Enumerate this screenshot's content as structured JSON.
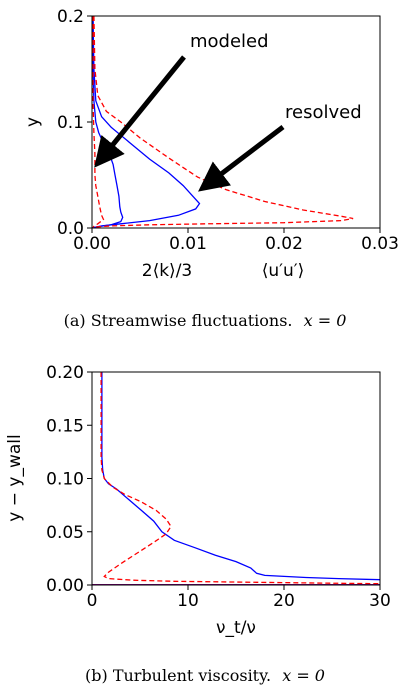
{
  "chart_data": [
    {
      "type": "line",
      "panel_caption": "(a) Streamwise fluctuations.",
      "caption_math": "x = 0",
      "xlabel_left": "2⟨k⟩/3",
      "xlabel_right": "⟨u′u′⟩",
      "ylabel": "y",
      "xlim": [
        0,
        0.03
      ],
      "ylim": [
        0,
        0.2
      ],
      "xticks": [
        "0.00",
        "0.01",
        "0.02",
        "0.03"
      ],
      "yticks": [
        "0.0",
        "0.1",
        "0.2"
      ],
      "grid": false,
      "annotations": [
        {
          "text": "modeled",
          "points_to": [
            0.0003,
            0.05
          ]
        },
        {
          "text": "resolved",
          "points_to": [
            0.0105,
            0.033
          ]
        }
      ],
      "series": [
        {
          "style": "solid",
          "color": "#0000ff",
          "points": [
            [
              0.0001,
              0.2
            ],
            [
              0.0001,
              0.15
            ],
            [
              0.0002,
              0.12
            ],
            [
              0.0004,
              0.1
            ],
            [
              0.0007,
              0.09
            ],
            [
              0.0012,
              0.08
            ],
            [
              0.0018,
              0.07
            ],
            [
              0.0022,
              0.06
            ],
            [
              0.0024,
              0.05
            ],
            [
              0.0026,
              0.04
            ],
            [
              0.0028,
              0.03
            ],
            [
              0.0029,
              0.02
            ],
            [
              0.003,
              0.015
            ],
            [
              0.0032,
              0.01
            ],
            [
              0.003,
              0.006
            ],
            [
              0.002,
              0.003
            ],
            [
              0.0005,
              0.001
            ],
            [
              0.0,
              0.0
            ]
          ]
        },
        {
          "style": "solid",
          "color": "#0000ff",
          "points": [
            [
              0.0001,
              0.2
            ],
            [
              0.0002,
              0.15
            ],
            [
              0.0004,
              0.12
            ],
            [
              0.001,
              0.105
            ],
            [
              0.002,
              0.095
            ],
            [
              0.004,
              0.08
            ],
            [
              0.006,
              0.065
            ],
            [
              0.008,
              0.052
            ],
            [
              0.0095,
              0.04
            ],
            [
              0.0105,
              0.03
            ],
            [
              0.0112,
              0.023
            ],
            [
              0.0108,
              0.018
            ],
            [
              0.009,
              0.012
            ],
            [
              0.006,
              0.007
            ],
            [
              0.003,
              0.004
            ],
            [
              0.001,
              0.002
            ],
            [
              0.0,
              0.0
            ]
          ]
        },
        {
          "style": "dashed",
          "color": "#ff0000",
          "points": [
            [
              0.0002,
              0.2
            ],
            [
              0.0003,
              0.15
            ],
            [
              0.0006,
              0.125
            ],
            [
              0.0015,
              0.11
            ],
            [
              0.003,
              0.1
            ],
            [
              0.005,
              0.085
            ],
            [
              0.008,
              0.066
            ],
            [
              0.011,
              0.048
            ],
            [
              0.014,
              0.036
            ],
            [
              0.018,
              0.025
            ],
            [
              0.022,
              0.017
            ],
            [
              0.026,
              0.011
            ],
            [
              0.0272,
              0.009
            ],
            [
              0.026,
              0.007
            ],
            [
              0.02,
              0.005
            ],
            [
              0.012,
              0.004
            ],
            [
              0.006,
              0.003
            ],
            [
              0.002,
              0.002
            ],
            [
              0.0005,
              0.001
            ],
            [
              0.0,
              0.0
            ]
          ]
        },
        {
          "style": "dashed",
          "color": "#ff0000",
          "points": [
            [
              0.0001,
              0.2
            ],
            [
              0.0001,
              0.15
            ],
            [
              0.0001,
              0.12
            ],
            [
              0.0002,
              0.09
            ],
            [
              0.0003,
              0.07
            ],
            [
              0.0003,
              0.05
            ],
            [
              0.0004,
              0.04
            ],
            [
              0.0006,
              0.03
            ],
            [
              0.0008,
              0.02
            ],
            [
              0.001,
              0.012
            ],
            [
              0.0012,
              0.008
            ],
            [
              0.0006,
              0.004
            ],
            [
              0.0001,
              0.001
            ]
          ]
        }
      ]
    },
    {
      "type": "line",
      "panel_caption": "(b) Turbulent viscosity.",
      "caption_math": "x = 0",
      "xlabel": "ν_t/ν",
      "ylabel": "y − y_wall",
      "xlim": [
        0,
        35
      ],
      "ylim": [
        0,
        0.2
      ],
      "xticks": [
        "0",
        "10",
        "20",
        "30"
      ],
      "yticks": [
        "0.00",
        "0.05",
        "0.10",
        "0.15",
        "0.20"
      ],
      "grid": false,
      "series": [
        {
          "style": "solid",
          "color": "#0000ff",
          "points": [
            [
              1.2,
              0.2
            ],
            [
              1.2,
              0.15
            ],
            [
              1.2,
              0.12
            ],
            [
              1.3,
              0.108
            ],
            [
              1.5,
              0.1
            ],
            [
              2,
              0.095
            ],
            [
              3,
              0.09
            ],
            [
              4.5,
              0.08
            ],
            [
              6,
              0.07
            ],
            [
              7.5,
              0.06
            ],
            [
              8.5,
              0.05
            ],
            [
              10,
              0.042
            ],
            [
              12.5,
              0.035
            ],
            [
              15,
              0.028
            ],
            [
              17.5,
              0.022
            ],
            [
              19.3,
              0.016
            ],
            [
              20,
              0.011
            ],
            [
              21,
              0.009
            ],
            [
              26,
              0.007
            ],
            [
              30,
              0.006
            ],
            [
              35,
              0.005
            ]
          ]
        },
        {
          "style": "dashed",
          "color": "#ff0000",
          "points": [
            [
              1.1,
              0.2
            ],
            [
              1.1,
              0.15
            ],
            [
              1.1,
              0.12
            ],
            [
              1.2,
              0.108
            ],
            [
              1.5,
              0.1
            ],
            [
              2.5,
              0.092
            ],
            [
              4,
              0.085
            ],
            [
              6,
              0.078
            ],
            [
              7.8,
              0.07
            ],
            [
              9,
              0.062
            ],
            [
              9.6,
              0.055
            ],
            [
              9,
              0.048
            ],
            [
              7.5,
              0.04
            ],
            [
              5.5,
              0.03
            ],
            [
              3.5,
              0.02
            ],
            [
              2,
              0.012
            ],
            [
              1.5,
              0.008
            ],
            [
              2,
              0.006
            ],
            [
              5,
              0.0045
            ],
            [
              10,
              0.0035
            ],
            [
              20,
              0.0025
            ],
            [
              28,
              0.0018
            ],
            [
              35,
              0.0012
            ]
          ]
        },
        {
          "style": "solid",
          "color": "#800080",
          "points": [
            [
              0,
              0.0003
            ],
            [
              35,
              0.0003
            ]
          ]
        }
      ]
    }
  ]
}
